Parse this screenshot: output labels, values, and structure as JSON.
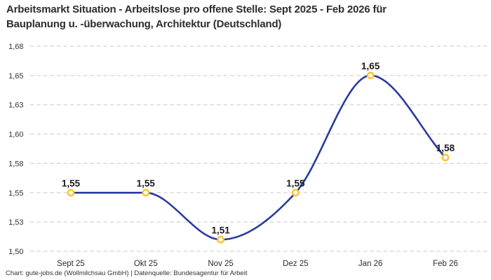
{
  "title": "Arbeitsmarkt Situation - Arbeitslose pro offene Stelle: Sept 2025 - Feb 2026 für\nBauplanung u. -überwachung, Architektur (Deutschland)",
  "footer": "Chart: gute-jobs.de (Wollmilchsau GmbH) | Datenquelle: Bundesagentur für Arbeit",
  "chart_data": {
    "type": "line",
    "title": "Arbeitsmarkt Situation - Arbeitslose pro offene Stelle: Sept 2025 - Feb 2026 für Bauplanung u. -überwachung, Architektur (Deutschland)",
    "categories": [
      "Sept 25",
      "Okt 25",
      "Nov 25",
      "Dez 25",
      "Jan 26",
      "Feb 26"
    ],
    "values": [
      1.55,
      1.55,
      1.51,
      1.55,
      1.65,
      1.58
    ],
    "value_labels": [
      "1,55",
      "1,55",
      "1,51",
      "1,55",
      "1,65",
      "1,58"
    ],
    "xlabel": "",
    "ylabel": "",
    "ylim": [
      1.5,
      1.675
    ],
    "ytick_step": 0.025,
    "ytick_labels": [
      "1,50",
      "1,53",
      "1,55",
      "1,58",
      "1,60",
      "1,63",
      "1,65",
      "1,68"
    ],
    "grid": "horizontal-dashed",
    "legend": "none",
    "smoothing": "monotone",
    "colors": {
      "line": "#2a3b9f",
      "marker_fill": "#ffffff",
      "marker_stroke": "#fcc32f",
      "gridline": "#c9c9c9",
      "tick_label": "#333333",
      "value_label": "#1b1b1b"
    }
  }
}
